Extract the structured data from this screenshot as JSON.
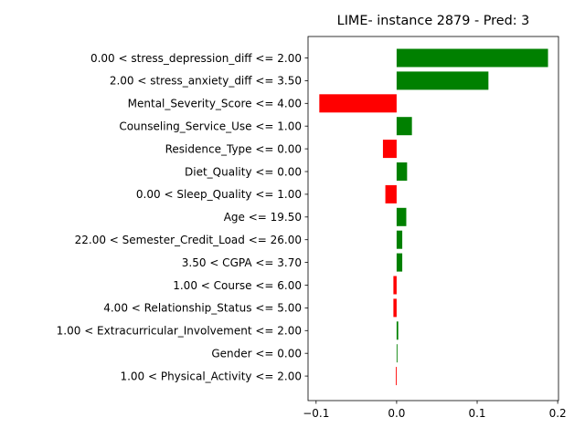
{
  "chart_data": {
    "type": "bar",
    "orientation": "horizontal",
    "title": "LIME- instance 2879 - Pred: 3",
    "xlabel": "",
    "ylabel": "",
    "xlim": [
      -0.11,
      0.201
    ],
    "xticks": [
      -0.1,
      0.0,
      0.1,
      0.2
    ],
    "xtick_labels": [
      "−0.1",
      "0.0",
      "0.1",
      "0.2"
    ],
    "categories": [
      "0.00 < stress_depression_diff <= 2.00",
      "2.00 < stress_anxiety_diff <= 3.50",
      "Mental_Severity_Score <= 4.00",
      "Counseling_Service_Use <= 1.00",
      "Residence_Type <= 0.00",
      "Diet_Quality <= 0.00",
      "0.00 < Sleep_Quality <= 1.00",
      "Age <= 19.50",
      "22.00 < Semester_Credit_Load <= 26.00",
      "3.50 < CGPA <= 3.70",
      "1.00 < Course <= 6.00",
      "4.00 < Relationship_Status <= 5.00",
      "1.00 < Extracurricular_Involvement <= 2.00",
      "Gender <= 0.00",
      "1.00 < Physical_Activity <= 2.00"
    ],
    "values": [
      0.188,
      0.114,
      -0.096,
      0.019,
      -0.017,
      0.013,
      -0.014,
      0.012,
      0.007,
      0.007,
      -0.004,
      -0.004,
      0.002,
      0.001,
      -0.001
    ],
    "colors": {
      "positive": "#008000",
      "negative": "#ff0000"
    },
    "grid": false
  }
}
